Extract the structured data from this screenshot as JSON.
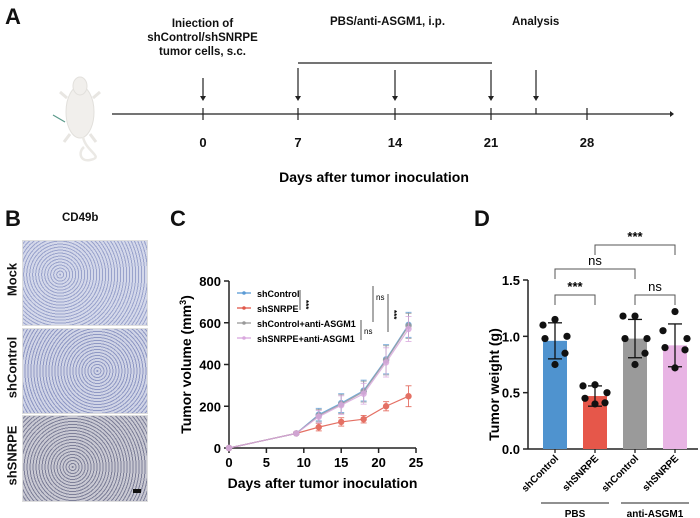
{
  "panels": {
    "A": {
      "letter": "A",
      "events": {
        "injection": "Injection of shControl/shSNRPE tumor cells, s.c.",
        "injection_lines": [
          "Iniection of",
          "shControl/shSNRPE",
          "tumor cells, s.c."
        ],
        "treatment": "PBS/anti-ASGM1, i.p.",
        "analysis": "Analysis"
      },
      "ticks": [
        "0",
        "7",
        "14",
        "21",
        "28"
      ],
      "xlabel": "Days after tumor inoculation",
      "icons": {
        "mouse": "mouse-icon",
        "syringe": "syringe-icon"
      }
    },
    "B": {
      "letter": "B",
      "title": "CD49b",
      "rows": [
        "Mock",
        "shControl",
        "shSNRPE"
      ]
    },
    "C": {
      "letter": "C"
    },
    "D": {
      "letter": "D"
    }
  },
  "chart_data": [
    {
      "panel": "C",
      "type": "line",
      "title": "",
      "xlabel": "Days after tumor inoculation",
      "ylabel": "Tumor volume (mm3)",
      "xlim": [
        0,
        25
      ],
      "ylim": [
        0,
        800
      ],
      "xticks": [
        0,
        5,
        10,
        15,
        20,
        25
      ],
      "yticks": [
        0,
        200,
        400,
        600,
        800
      ],
      "legend_position": "upper-left",
      "x": [
        0,
        9,
        12,
        15,
        18,
        21,
        24
      ],
      "series": [
        {
          "name": "shControl",
          "color": "#5b9bd5",
          "values": [
            0,
            70,
            160,
            215,
            275,
            425,
            590
          ],
          "err": [
            0,
            5,
            30,
            45,
            50,
            70,
            60
          ]
        },
        {
          "name": "shSNRPE",
          "color": "#e0584a",
          "values": [
            0,
            70,
            100,
            125,
            138,
            200,
            248
          ],
          "err": [
            0,
            5,
            18,
            20,
            18,
            22,
            50
          ]
        },
        {
          "name": "shControl+anti-ASGM1",
          "color": "#999999",
          "values": [
            0,
            70,
            155,
            210,
            270,
            420,
            585
          ],
          "err": [
            0,
            5,
            30,
            45,
            50,
            70,
            60
          ]
        },
        {
          "name": "shSNRPE+anti-ASGM1",
          "color": "#d9a8de",
          "values": [
            0,
            70,
            150,
            205,
            260,
            410,
            570
          ],
          "err": [
            0,
            5,
            30,
            45,
            50,
            70,
            60
          ]
        }
      ],
      "annotations": [
        {
          "between": [
            "shControl",
            "shSNRPE"
          ],
          "label": "***"
        },
        {
          "between": [
            "shControl+anti-ASGM1",
            "shSNRPE+anti-ASGM1"
          ],
          "label": "ns"
        },
        {
          "between": [
            "shControl",
            "shControl+anti-ASGM1"
          ],
          "label": "ns"
        },
        {
          "between": [
            "shSNRPE",
            "shSNRPE+anti-ASGM1"
          ],
          "label": "***"
        }
      ]
    },
    {
      "panel": "D",
      "type": "bar",
      "title": "",
      "xlabel": "",
      "ylabel": "Tumor weight (g)",
      "ylim": [
        0,
        1.5
      ],
      "yticks": [
        "0.0",
        "0.5",
        "1.0",
        "1.5"
      ],
      "categories": [
        "shControl",
        "shSNRPE",
        "shControl",
        "shSNRPE"
      ],
      "groups": [
        {
          "label": "PBS",
          "members": [
            0,
            1
          ]
        },
        {
          "label": "anti-ASGM1",
          "members": [
            2,
            3
          ]
        }
      ],
      "colors": [
        "#4f93cf",
        "#e6574a",
        "#9a9a9a",
        "#e8b4e4"
      ],
      "values": [
        0.96,
        0.47,
        0.98,
        0.92
      ],
      "sd": [
        0.16,
        0.09,
        0.17,
        0.19
      ],
      "points": [
        [
          1.15,
          1.1,
          1.0,
          0.98,
          0.85,
          0.75
        ],
        [
          0.57,
          0.56,
          0.5,
          0.45,
          0.41,
          0.4
        ],
        [
          1.18,
          1.18,
          0.98,
          0.98,
          0.85,
          0.75
        ],
        [
          1.22,
          1.05,
          0.98,
          0.9,
          0.88,
          0.72
        ]
      ],
      "significance": [
        {
          "pair": [
            0,
            1
          ],
          "label": "***"
        },
        {
          "pair": [
            2,
            3
          ],
          "label": "ns"
        },
        {
          "pair": [
            0,
            2
          ],
          "label": "ns"
        },
        {
          "pair": [
            1,
            3
          ],
          "label": "***"
        }
      ]
    }
  ]
}
